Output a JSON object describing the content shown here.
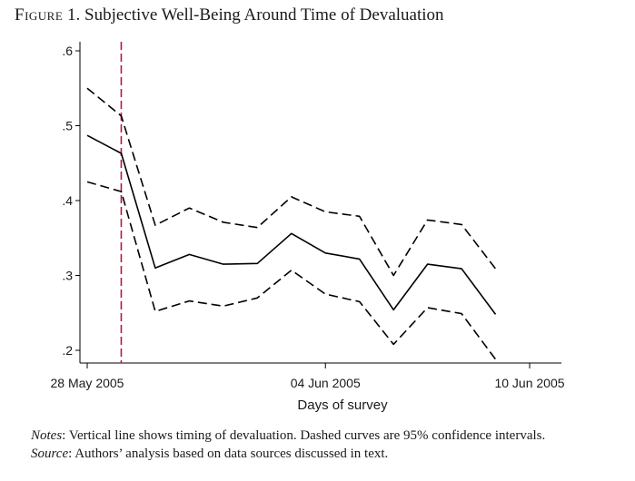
{
  "figure": {
    "label_prefix": "Figure",
    "label_number": "1.",
    "title": "Subjective Well-Being Around Time of Devaluation"
  },
  "notes": {
    "notes_label": "Notes",
    "notes_text": ": Vertical line shows timing of devaluation. Dashed curves are 95% confidence intervals.",
    "source_label": "Source",
    "source_text": ": Authors’ analysis based on data sources discussed in text."
  },
  "colors": {
    "series": "#000000",
    "devaluation_line": "#c0143c",
    "axis": "#000000"
  },
  "chart_data": {
    "type": "line",
    "title": "Subjective Well-Being Around Time of Devaluation",
    "xlabel": "Days of survey",
    "ylabel": "",
    "x_axis_type": "date",
    "xlim": [
      "2005-05-28",
      "2005-06-10"
    ],
    "ylim": [
      0.19,
      0.61
    ],
    "x_ticks": [
      "2005-05-28",
      "2005-06-04",
      "2005-06-10"
    ],
    "x_tick_labels": [
      "28 May 2005",
      "04 Jun 2005",
      "10 Jun 2005"
    ],
    "y_ticks": [
      0.2,
      0.3,
      0.4,
      0.5,
      0.6
    ],
    "y_tick_labels": [
      ".2",
      ".3",
      ".4",
      ".5",
      ".6"
    ],
    "grid": false,
    "legend": "none",
    "vertical_line": {
      "x": "2005-05-29",
      "style": "dashed",
      "color": "#c0143c"
    },
    "x": [
      "2005-05-28",
      "2005-05-29",
      "2005-05-30",
      "2005-05-31",
      "2005-06-01",
      "2005-06-02",
      "2005-06-03",
      "2005-06-04",
      "2005-06-05",
      "2005-06-06",
      "2005-06-07",
      "2005-06-08",
      "2005-06-09"
    ],
    "series": [
      {
        "role": "upper-ci",
        "style": "dashed",
        "values": [
          0.55,
          0.513,
          0.367,
          0.39,
          0.371,
          0.364,
          0.405,
          0.385,
          0.379,
          0.3,
          0.374,
          0.368,
          0.309
        ]
      },
      {
        "role": "estimate",
        "style": "solid",
        "values": [
          0.487,
          0.463,
          0.31,
          0.328,
          0.315,
          0.316,
          0.356,
          0.33,
          0.322,
          0.254,
          0.315,
          0.309,
          0.248
        ]
      },
      {
        "role": "lower-ci",
        "style": "dashed",
        "values": [
          0.425,
          0.412,
          0.252,
          0.266,
          0.259,
          0.27,
          0.307,
          0.275,
          0.265,
          0.208,
          0.257,
          0.249,
          0.188
        ]
      }
    ]
  }
}
